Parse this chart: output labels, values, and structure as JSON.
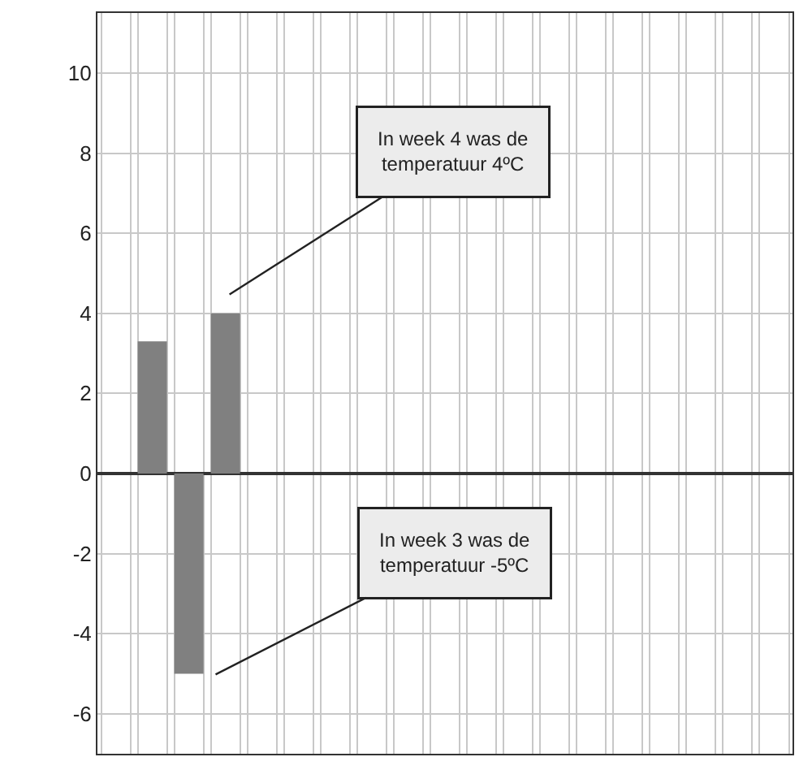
{
  "chart_data": {
    "type": "bar",
    "categories": [
      null,
      null,
      null,
      null,
      null,
      null,
      null,
      null,
      null,
      null,
      null,
      null,
      null,
      null,
      null,
      null,
      null,
      null,
      null
    ],
    "values": [
      null,
      3.3,
      -5,
      4,
      null,
      null,
      null,
      null,
      null,
      null,
      null,
      null,
      null,
      null,
      null,
      null,
      null,
      null,
      null
    ],
    "color": "#808080",
    "ylim": [
      -7,
      11.5
    ],
    "yticks": [
      -6,
      -4,
      -2,
      0,
      2,
      4,
      6,
      8,
      10
    ],
    "grid": true,
    "tick_labels": "y",
    "annotations": [
      "In week 4 was de\ntemperatuur 4ºC",
      "In week 3 was de\ntemperatuur -5ºC"
    ]
  }
}
